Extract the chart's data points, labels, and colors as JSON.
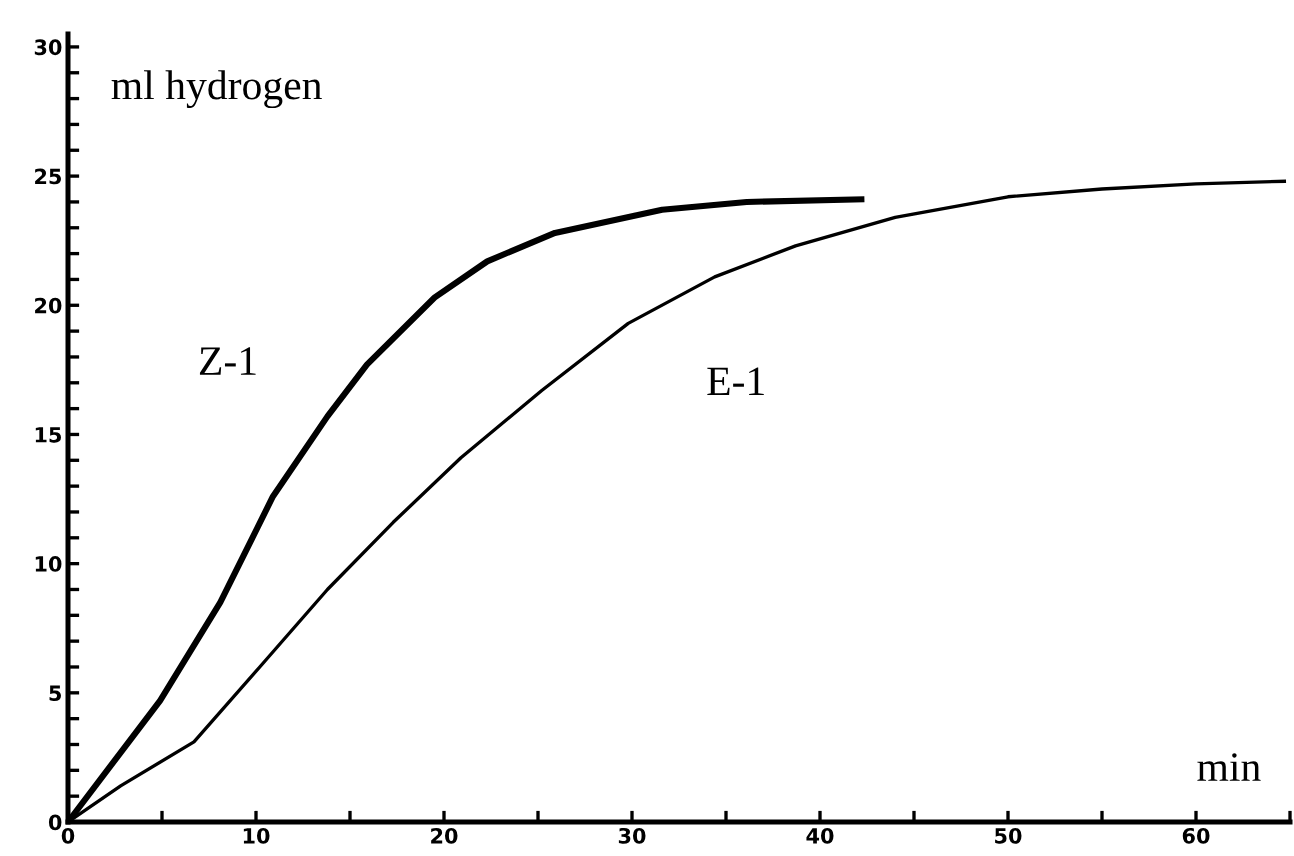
{
  "chart_data": {
    "type": "line",
    "xlabel": "min",
    "ylabel": "ml hydrogen",
    "xlim": [
      0,
      65
    ],
    "ylim": [
      0,
      30.5
    ],
    "xticks": [
      0,
      {
        "value": 5,
        "label": null
      },
      10,
      {
        "value": 15,
        "label": null
      },
      20,
      {
        "value": 25,
        "label": null
      },
      30,
      {
        "value": 35,
        "label": null
      },
      40,
      {
        "value": 45,
        "label": null
      },
      50,
      {
        "value": 55,
        "label": null
      },
      60,
      {
        "value": 65,
        "label": null
      }
    ],
    "yticks": [
      0,
      {
        "value": 1,
        "label": null
      },
      {
        "value": 2,
        "label": null
      },
      {
        "value": 3,
        "label": null
      },
      {
        "value": 4,
        "label": null
      },
      5,
      {
        "value": 6,
        "label": null
      },
      {
        "value": 7,
        "label": null
      },
      {
        "value": 8,
        "label": null
      },
      {
        "value": 9,
        "label": null
      },
      10,
      {
        "value": 11,
        "label": null
      },
      {
        "value": 12,
        "label": null
      },
      {
        "value": 13,
        "label": null
      },
      {
        "value": 14,
        "label": null
      },
      15,
      {
        "value": 16,
        "label": null
      },
      {
        "value": 17,
        "label": null
      },
      {
        "value": 18,
        "label": null
      },
      {
        "value": 19,
        "label": null
      },
      20,
      {
        "value": 21,
        "label": null
      },
      {
        "value": 22,
        "label": null
      },
      {
        "value": 23,
        "label": null
      },
      {
        "value": 24,
        "label": null
      },
      25,
      {
        "value": 26,
        "label": null
      },
      {
        "value": 27,
        "label": null
      },
      {
        "value": 28,
        "label": null
      },
      {
        "value": 29,
        "label": null
      },
      30
    ],
    "grid": false,
    "legend": false,
    "marker": "none",
    "line_style": "solid",
    "series": [
      {
        "name": "Z-1",
        "color": "#000000",
        "x": [
          0,
          4.9,
          8.1,
          10.9,
          13.8,
          15.9,
          19.5,
          22.3,
          25.9,
          31.6,
          36.1,
          42.2
        ],
        "values": [
          0,
          4.7,
          8.5,
          12.6,
          15.7,
          17.7,
          20.3,
          21.7,
          22.8,
          23.7,
          24.0,
          24.1
        ]
      },
      {
        "name": "E-1",
        "color": "#000000",
        "x": [
          0,
          2.8,
          6.7,
          10.2,
          13.8,
          17.3,
          20.9,
          25.2,
          29.8,
          34.4,
          38.7,
          44.0,
          50,
          55,
          60,
          64.7
        ],
        "values": [
          0,
          1.4,
          3.1,
          6.0,
          9.0,
          11.6,
          14.1,
          16.7,
          19.3,
          21.1,
          22.3,
          23.4,
          24.2,
          24.5,
          24.7,
          24.8
        ]
      }
    ]
  }
}
